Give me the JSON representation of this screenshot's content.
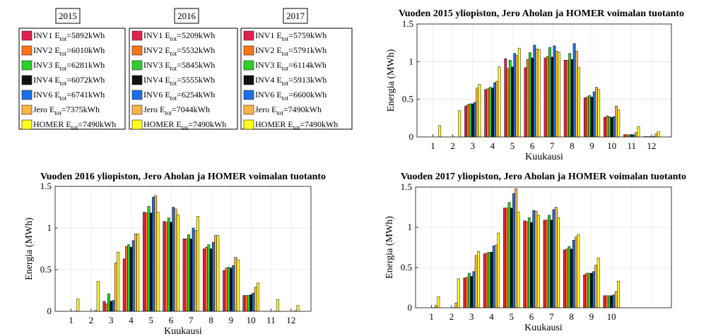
{
  "series_colors": [
    "#e0234e",
    "#ff7418",
    "#2fce2f",
    "#101010",
    "#1d6ee6",
    "#ffb446",
    "#ffff1e"
  ],
  "legends": [
    {
      "year": "2015",
      "entries": [
        {
          "name": "INV1",
          "value": "=5892kWh"
        },
        {
          "name": "INV2",
          "value": "=6010kWh"
        },
        {
          "name": "INV3",
          "value": "=6281kWh"
        },
        {
          "name": "INV4",
          "value": "=6072kWh"
        },
        {
          "name": "INV6",
          "value": "=6741kWh"
        },
        {
          "name": "Jero",
          "value": "=7375kWh"
        },
        {
          "name": "HOMER",
          "value": "=7490kWh"
        }
      ]
    },
    {
      "year": "2016",
      "entries": [
        {
          "name": "INV1",
          "value": "=5209kWh"
        },
        {
          "name": "INV2",
          "value": "=5532kWh"
        },
        {
          "name": "INV3",
          "value": "=5845kWh"
        },
        {
          "name": "INV4",
          "value": "=5555kWh"
        },
        {
          "name": "INV6",
          "value": "=6254kWh"
        },
        {
          "name": "Jero",
          "value": "=7044kWh"
        },
        {
          "name": "HOMER",
          "value": "=7490kWh"
        }
      ]
    },
    {
      "year": "2017",
      "entries": [
        {
          "name": "INV1",
          "value": "=5759kWh"
        },
        {
          "name": "INV2",
          "value": "=5791kWh"
        },
        {
          "name": "INV3",
          "value": "=6114kWh"
        },
        {
          "name": "INV4",
          "value": "=5913kWh"
        },
        {
          "name": "INV6",
          "value": "=6600kWh"
        },
        {
          "name": "Jero",
          "value": "=7490kWh"
        },
        {
          "name": "HOMER",
          "value": "=7490kWh"
        }
      ]
    }
  ],
  "legend_label_e": "E",
  "legend_label_sub": "tot",
  "chart_data": [
    {
      "type": "bar",
      "title": "Vuoden 2015 yliopiston, Jero Aholan ja HOMER voimalan tuotanto",
      "xlabel": "Kuukausi",
      "ylabel": "Energia (MWh)",
      "categories": [
        "1",
        "2",
        "3",
        "4",
        "5",
        "6",
        "7",
        "8",
        "9",
        "10",
        "11",
        "12"
      ],
      "ylim": [
        0,
        1.5
      ],
      "yticks": [
        0,
        0.5,
        1,
        1.5
      ],
      "ytick_labels": [
        "0",
        "0.5",
        "1",
        "1.5"
      ],
      "series": [
        {
          "name": "INV1",
          "values": [
            0,
            0,
            0.41,
            0.63,
            1.04,
            0.92,
            1.05,
            1.02,
            0.52,
            0.26,
            0.03,
            0.005
          ]
        },
        {
          "name": "INV2",
          "values": [
            0,
            0,
            0.43,
            0.64,
            0.91,
            1.03,
            1.07,
            1.02,
            0.53,
            0.28,
            0.03,
            0.005
          ]
        },
        {
          "name": "INV3",
          "values": [
            0,
            0,
            0.44,
            0.66,
            1.02,
            1.12,
            1.19,
            1.11,
            0.55,
            0.27,
            0.03,
            0.005
          ]
        },
        {
          "name": "INV4",
          "values": [
            0,
            0,
            0.44,
            0.65,
            0.93,
            1.05,
            1.06,
            1.03,
            0.53,
            0.26,
            0.03,
            0.005
          ]
        },
        {
          "name": "INV6",
          "values": [
            0,
            0,
            0.46,
            0.72,
            1.11,
            1.22,
            1.21,
            1.24,
            0.6,
            0.27,
            0.03,
            0.006
          ]
        },
        {
          "name": "Jero",
          "values": [
            0,
            0,
            0.65,
            0.74,
            1.08,
            1.17,
            1.14,
            1.14,
            0.66,
            0.41,
            0.06,
            0.04
          ]
        },
        {
          "name": "HOMER",
          "values": [
            0.15,
            0.35,
            0.7,
            0.93,
            1.18,
            1.16,
            1.12,
            0.92,
            0.63,
            0.36,
            0.14,
            0.07
          ]
        }
      ]
    },
    {
      "type": "bar",
      "title": "Vuoden 2016 yliopiston, Jero Aholan ja HOMER voimalan tuotanto",
      "xlabel": "Kuukausi",
      "ylabel": "Energia (MWh)",
      "categories": [
        "1",
        "2",
        "3",
        "4",
        "5",
        "6",
        "7",
        "8",
        "9",
        "10",
        "11",
        "12"
      ],
      "ylim": [
        0,
        1.5
      ],
      "yticks": [
        0,
        0.5,
        1,
        1.5
      ],
      "ytick_labels": [
        "0",
        "0.5",
        "1",
        "1.5"
      ],
      "series": [
        {
          "name": "INV1",
          "values": [
            0,
            0,
            0.12,
            0.63,
            1.19,
            1.08,
            0.87,
            0.75,
            0.49,
            0.19,
            0,
            0
          ]
        },
        {
          "name": "INV2",
          "values": [
            0,
            0,
            0.09,
            0.78,
            1.18,
            1.07,
            0.87,
            0.77,
            0.52,
            0.19,
            0,
            0
          ]
        },
        {
          "name": "INV3",
          "values": [
            0,
            0,
            0.21,
            0.8,
            1.26,
            1.12,
            0.92,
            0.8,
            0.53,
            0.19,
            0,
            0
          ]
        },
        {
          "name": "INV4",
          "values": [
            0,
            0,
            0.12,
            0.77,
            1.18,
            1.07,
            0.87,
            0.75,
            0.52,
            0.2,
            0,
            0
          ]
        },
        {
          "name": "INV6",
          "values": [
            0,
            0,
            0.13,
            0.85,
            1.37,
            1.25,
            1.0,
            0.83,
            0.55,
            0.22,
            0,
            0
          ]
        },
        {
          "name": "Jero",
          "values": [
            0.003,
            0.01,
            0.58,
            0.93,
            1.39,
            1.23,
            0.97,
            0.91,
            0.65,
            0.29,
            0.003,
            0.005
          ]
        },
        {
          "name": "HOMER",
          "values": [
            0.15,
            0.36,
            0.71,
            0.93,
            1.19,
            1.16,
            1.14,
            0.91,
            0.62,
            0.34,
            0.14,
            0.07
          ]
        }
      ]
    },
    {
      "type": "bar",
      "title": "Vuoden 2017 yliopiston, Jero Aholan ja HOMER voimalan tuotanto",
      "xlabel": "Kuukausi",
      "ylabel": "Energia (MWh)",
      "categories": [
        "1",
        "2",
        "3",
        "4",
        "5",
        "6",
        "7",
        "8",
        "9",
        "10"
      ],
      "xlim": [
        0.2,
        13
      ],
      "ylim": [
        0,
        1.5
      ],
      "yticks": [
        0,
        0.5,
        1,
        1.5
      ],
      "ytick_labels": [
        "0",
        "0.5",
        "1",
        "1.5"
      ],
      "series": [
        {
          "name": "INV1",
          "values": [
            0,
            0,
            0.37,
            0.67,
            1.24,
            1.08,
            1.09,
            0.72,
            0.41,
            0.15
          ]
        },
        {
          "name": "INV2",
          "values": [
            0,
            0,
            0.38,
            0.68,
            1.24,
            1.07,
            1.09,
            0.73,
            0.43,
            0.15
          ]
        },
        {
          "name": "INV3",
          "values": [
            0,
            0,
            0.43,
            0.69,
            1.31,
            1.12,
            1.15,
            0.76,
            0.43,
            0.15
          ]
        },
        {
          "name": "INV4",
          "values": [
            0,
            0,
            0.39,
            0.69,
            1.24,
            1.06,
            1.09,
            0.73,
            0.43,
            0.15
          ]
        },
        {
          "name": "INV6",
          "values": [
            0.003,
            0.003,
            0.45,
            0.77,
            1.42,
            1.21,
            1.22,
            0.84,
            0.45,
            0.16
          ]
        },
        {
          "name": "Jero",
          "values": [
            0.03,
            0.06,
            0.65,
            0.78,
            1.48,
            1.2,
            1.25,
            0.88,
            0.53,
            0.2
          ]
        },
        {
          "name": "HOMER",
          "values": [
            0.14,
            0.36,
            0.7,
            0.93,
            1.19,
            1.15,
            1.12,
            0.91,
            0.62,
            0.33
          ]
        }
      ]
    }
  ]
}
